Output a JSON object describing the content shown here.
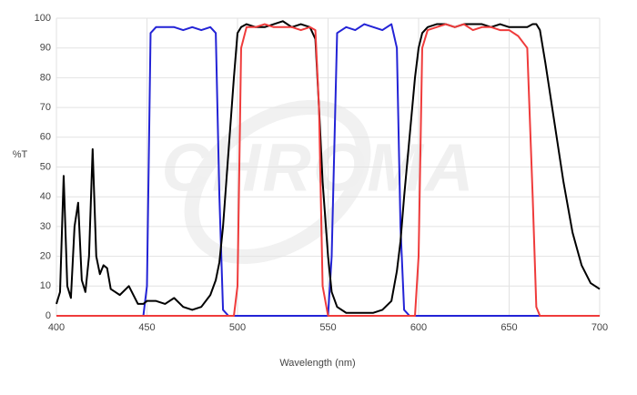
{
  "chart_data": {
    "type": "line",
    "watermark": "CHROMA",
    "xlabel": "Wavelength (nm)",
    "ylabel": "%T",
    "xlim": [
      400,
      700
    ],
    "ylim": [
      0,
      100
    ],
    "xticks": [
      400,
      450,
      500,
      550,
      600,
      650,
      700
    ],
    "yticks": [
      0,
      10,
      20,
      30,
      40,
      50,
      60,
      70,
      80,
      90,
      100
    ],
    "grid": true,
    "x": [
      400,
      402,
      404,
      406,
      408,
      410,
      412,
      414,
      416,
      418,
      420,
      422,
      424,
      426,
      428,
      430,
      435,
      440,
      445,
      448,
      450,
      452,
      455,
      460,
      465,
      470,
      475,
      480,
      485,
      488,
      490,
      492,
      495,
      498,
      500,
      502,
      505,
      510,
      515,
      520,
      525,
      530,
      535,
      540,
      543,
      545,
      547,
      550,
      552,
      555,
      560,
      565,
      570,
      575,
      580,
      585,
      588,
      590,
      592,
      595,
      598,
      600,
      602,
      605,
      610,
      615,
      620,
      625,
      630,
      635,
      640,
      645,
      650,
      655,
      660,
      663,
      665,
      667,
      670,
      675,
      680,
      685,
      690,
      695,
      700
    ],
    "series": [
      {
        "color": "#2323d6",
        "values": [
          0,
          0,
          0,
          0,
          0,
          0,
          0,
          0,
          0,
          0,
          0,
          0,
          0,
          0,
          0,
          0,
          0,
          0,
          0,
          0,
          10,
          95,
          97,
          97,
          97,
          96,
          97,
          96,
          97,
          95,
          40,
          2,
          0,
          0,
          0,
          0,
          0,
          0,
          0,
          0,
          0,
          0,
          0,
          0,
          0,
          0,
          0,
          0,
          20,
          95,
          97,
          96,
          98,
          97,
          96,
          98,
          90,
          30,
          2,
          0,
          0,
          0,
          0,
          0,
          0,
          0,
          0,
          0,
          0,
          0,
          0,
          0,
          0,
          0,
          0,
          0,
          0,
          0,
          0,
          0,
          0,
          0,
          0,
          0,
          0
        ]
      },
      {
        "color": "#000000",
        "values": [
          4,
          8,
          47,
          10,
          6,
          30,
          38,
          12,
          8,
          20,
          56,
          20,
          14,
          17,
          16,
          9,
          7,
          10,
          4,
          4,
          5,
          5,
          5,
          4,
          6,
          3,
          2,
          3,
          7,
          12,
          18,
          30,
          55,
          80,
          95,
          97,
          98,
          97,
          97,
          98,
          99,
          97,
          98,
          97,
          93,
          70,
          45,
          20,
          8,
          3,
          1,
          1,
          1,
          1,
          2,
          5,
          15,
          25,
          40,
          60,
          80,
          90,
          95,
          97,
          98,
          98,
          97,
          98,
          98,
          98,
          97,
          98,
          97,
          97,
          97,
          98,
          98,
          96,
          85,
          65,
          45,
          28,
          17,
          11,
          9
        ]
      },
      {
        "color": "#ef3b3b",
        "values": [
          0,
          0,
          0,
          0,
          0,
          0,
          0,
          0,
          0,
          0,
          0,
          0,
          0,
          0,
          0,
          0,
          0,
          0,
          0,
          0,
          0,
          0,
          0,
          0,
          0,
          0,
          0,
          0,
          0,
          0,
          0,
          0,
          0,
          0,
          10,
          90,
          97,
          97,
          98,
          97,
          97,
          97,
          96,
          97,
          96,
          70,
          10,
          0,
          0,
          0,
          0,
          0,
          0,
          0,
          0,
          0,
          0,
          0,
          0,
          0,
          0,
          20,
          90,
          96,
          97,
          98,
          97,
          98,
          96,
          97,
          97,
          96,
          96,
          94,
          90,
          40,
          3,
          0,
          0,
          0,
          0,
          0,
          0,
          0,
          0
        ]
      }
    ]
  }
}
